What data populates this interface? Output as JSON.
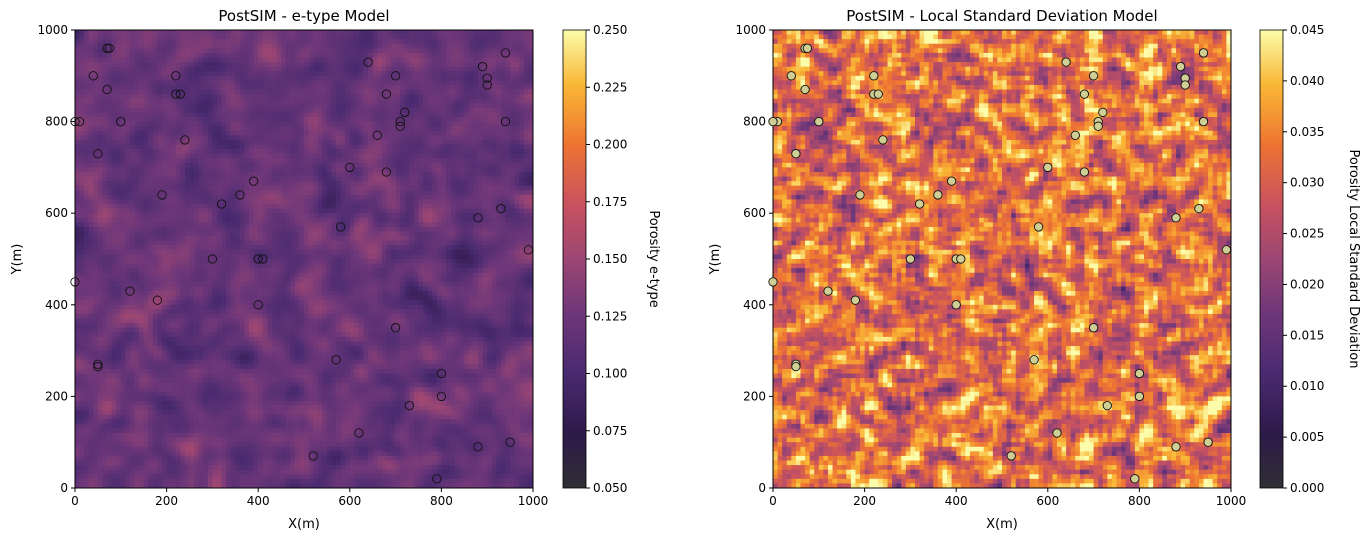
{
  "chart_data": [
    {
      "type": "heatmap",
      "title": "PostSIM - e-type Model",
      "xlabel": "X(m)",
      "ylabel": "Y(m)",
      "xlim": [
        0,
        1000
      ],
      "ylim": [
        0,
        1000
      ],
      "xticks": [
        "0",
        "200",
        "400",
        "600",
        "800",
        "1000"
      ],
      "yticks": [
        "0",
        "200",
        "400",
        "600",
        "800",
        "1000"
      ],
      "colormap": "inferno",
      "colorbar": {
        "label": "Porosity e-type",
        "range": [
          0.05,
          0.25
        ],
        "ticks": [
          "0.050",
          "0.075",
          "0.100",
          "0.125",
          "0.150",
          "0.175",
          "0.200",
          "0.225",
          "0.250"
        ]
      },
      "field_summary": {
        "grid_cells": 100,
        "typical_value": 0.12
      },
      "point_style": "hollow"
    },
    {
      "type": "heatmap",
      "title": "PostSIM - Local Standard Deviation Model",
      "xlabel": "X(m)",
      "ylabel": "Y(m)",
      "xlim": [
        0,
        1000
      ],
      "ylim": [
        0,
        1000
      ],
      "xticks": [
        "0",
        "200",
        "400",
        "600",
        "800",
        "1000"
      ],
      "yticks": [
        "0",
        "200",
        "400",
        "600",
        "800",
        "1000"
      ],
      "colormap": "inferno",
      "colorbar": {
        "label": "Porosity Local Standard Deviation",
        "range": [
          0.0,
          0.045
        ],
        "ticks": [
          "0.000",
          "0.005",
          "0.010",
          "0.015",
          "0.020",
          "0.025",
          "0.030",
          "0.035",
          "0.040",
          "0.045"
        ]
      },
      "field_summary": {
        "grid_cells": 100,
        "typical_value": 0.032
      },
      "point_style": "filled"
    }
  ],
  "wells": [
    [
      70,
      960
    ],
    [
      75,
      960
    ],
    [
      40,
      900
    ],
    [
      70,
      870
    ],
    [
      10,
      800
    ],
    [
      0,
      800
    ],
    [
      220,
      900
    ],
    [
      220,
      860
    ],
    [
      230,
      860
    ],
    [
      100,
      800
    ],
    [
      50,
      730
    ],
    [
      240,
      760
    ],
    [
      190,
      640
    ],
    [
      320,
      620
    ],
    [
      360,
      640
    ],
    [
      390,
      670
    ],
    [
      600,
      700
    ],
    [
      640,
      930
    ],
    [
      700,
      900
    ],
    [
      680,
      860
    ],
    [
      720,
      820
    ],
    [
      710,
      800
    ],
    [
      710,
      790
    ],
    [
      660,
      770
    ],
    [
      680,
      690
    ],
    [
      580,
      570
    ],
    [
      880,
      590
    ],
    [
      930,
      610
    ],
    [
      890,
      920
    ],
    [
      900,
      895
    ],
    [
      900,
      880
    ],
    [
      940,
      950
    ],
    [
      940,
      800
    ],
    [
      990,
      520
    ],
    [
      0,
      450
    ],
    [
      300,
      500
    ],
    [
      400,
      500
    ],
    [
      410,
      500
    ],
    [
      120,
      430
    ],
    [
      180,
      410
    ],
    [
      400,
      400
    ],
    [
      700,
      350
    ],
    [
      50,
      270
    ],
    [
      50,
      265
    ],
    [
      570,
      280
    ],
    [
      800,
      250
    ],
    [
      730,
      180
    ],
    [
      800,
      200
    ],
    [
      620,
      120
    ],
    [
      520,
      70
    ],
    [
      880,
      90
    ],
    [
      950,
      100
    ],
    [
      790,
      20
    ]
  ]
}
